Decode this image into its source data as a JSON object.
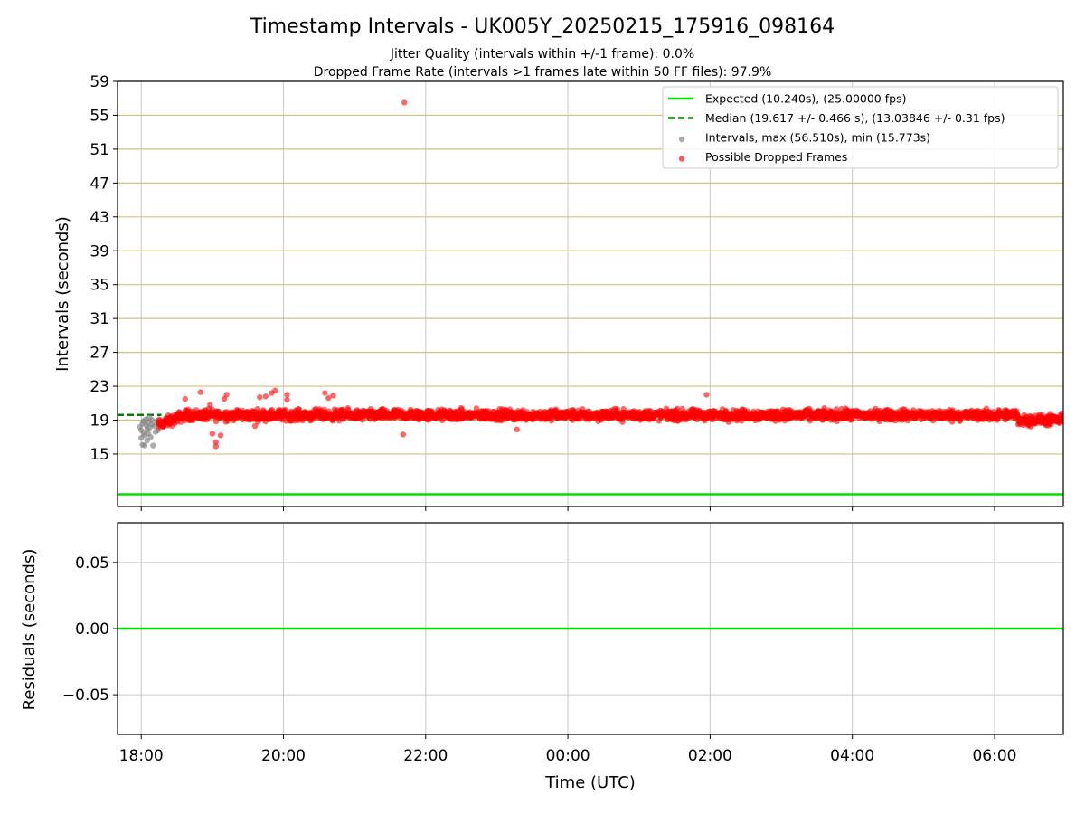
{
  "chart_data": [
    {
      "type": "scatter",
      "title": "Timestamp Intervals - UK005Y_20250215_175916_098164",
      "subtitle_lines": [
        "Jitter Quality (intervals within +/-1 frame): 0.0%",
        "Dropped Frame Rate (intervals >1 frames late within 50 FF files): 97.9%"
      ],
      "ylabel": "Intervals (seconds)",
      "xlabel": "",
      "ylim": [
        8.8,
        59
      ],
      "yticks": [
        "15",
        "19",
        "23",
        "27",
        "31",
        "35",
        "39",
        "43",
        "47",
        "51",
        "55",
        "59"
      ],
      "ytick_values": [
        15,
        19,
        23,
        27,
        31,
        35,
        39,
        43,
        47,
        51,
        55,
        59
      ],
      "x_start": "17:40",
      "x_end": "06:58",
      "xticks": [
        "18:00",
        "20:00",
        "22:00",
        "00:00",
        "02:00",
        "04:00",
        "06:00"
      ],
      "grid_y_color": "#d4c27a",
      "grid_x_color": "#cccccc",
      "legend_position": "upper right",
      "series": [
        {
          "name": "Expected (10.240s), (25.00000 fps)",
          "kind": "hline",
          "value": 10.24,
          "color": "#00e000"
        },
        {
          "name": "Median (19.617 +/- 0.466 s), (13.03846 +/- 0.31 fps)",
          "kind": "hline-dashed",
          "value": 19.617,
          "x_range": [
            "17:40",
            "18:17"
          ],
          "color": "#008000"
        },
        {
          "name": "Intervals, max (56.510s), min (15.773s)",
          "kind": "scatter",
          "color": "#808080",
          "points": [
            [
              "17:59",
              18.2
            ],
            [
              "18:00",
              17.8
            ],
            [
              "18:00",
              16.9
            ],
            [
              "18:01",
              16.1
            ],
            [
              "18:01",
              18.6
            ],
            [
              "18:02",
              17.5
            ],
            [
              "18:02",
              18.9
            ],
            [
              "18:03",
              16.0
            ],
            [
              "18:03",
              17.2
            ],
            [
              "18:04",
              18.4
            ],
            [
              "18:04",
              19.1
            ],
            [
              "18:05",
              17.9
            ],
            [
              "18:05",
              16.6
            ],
            [
              "18:06",
              18.7
            ],
            [
              "18:06",
              17.4
            ],
            [
              "18:07",
              19.3
            ],
            [
              "18:07",
              18.1
            ],
            [
              "18:08",
              17.0
            ],
            [
              "18:09",
              18.5
            ],
            [
              "18:09",
              19.0
            ],
            [
              "18:10",
              16.0
            ],
            [
              "18:11",
              18.3
            ],
            [
              "18:12",
              17.6
            ],
            [
              "18:13",
              18.9
            ],
            [
              "18:14",
              17.8
            ]
          ]
        },
        {
          "name": "Possible Dropped Frames",
          "kind": "scatter",
          "color": "#ff0000",
          "band": {
            "from": "18:14",
            "to": "06:58",
            "center": 19.6,
            "spread": 0.45
          },
          "outliers": [
            [
              "21:42",
              56.5
            ],
            [
              "18:37",
              21.5
            ],
            [
              "18:50",
              22.3
            ],
            [
              "18:58",
              20.8
            ],
            [
              "19:00",
              17.4
            ],
            [
              "19:03",
              16.4
            ],
            [
              "19:03",
              15.9
            ],
            [
              "19:07",
              17.2
            ],
            [
              "19:10",
              21.5
            ],
            [
              "19:12",
              22.0
            ],
            [
              "19:36",
              18.3
            ],
            [
              "19:40",
              21.7
            ],
            [
              "19:45",
              21.8
            ],
            [
              "19:50",
              22.2
            ],
            [
              "19:53",
              22.5
            ],
            [
              "20:03",
              22.0
            ],
            [
              "20:03",
              21.4
            ],
            [
              "20:35",
              22.2
            ],
            [
              "20:38",
              21.6
            ],
            [
              "20:42",
              21.9
            ],
            [
              "21:41",
              17.3
            ],
            [
              "23:17",
              17.9
            ],
            [
              "01:57",
              22.0
            ]
          ]
        }
      ]
    },
    {
      "type": "line",
      "ylabel": "Residuals (seconds)",
      "xlabel": "Time (UTC)",
      "ylim": [
        -0.08,
        0.08
      ],
      "yticks": [
        "0.05",
        "0.00",
        "−0.05"
      ],
      "ytick_values": [
        0.05,
        0.0,
        -0.05
      ],
      "xticks": [
        "18:00",
        "20:00",
        "22:00",
        "00:00",
        "02:00",
        "04:00",
        "06:00"
      ],
      "series": [
        {
          "kind": "hline",
          "value": 0.0,
          "color": "#00e000"
        }
      ]
    }
  ]
}
